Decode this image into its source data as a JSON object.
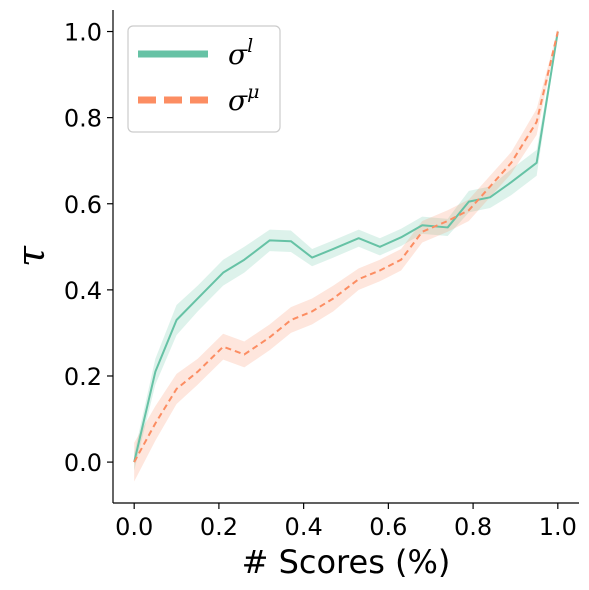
{
  "chart_data": {
    "type": "line",
    "xlabel": "# Scores (%)",
    "ylabel": "τ",
    "xlim": [
      -0.05,
      1.05
    ],
    "ylim": [
      -0.095,
      1.05
    ],
    "x_ticks": [
      0.0,
      0.2,
      0.4,
      0.6,
      0.8,
      1.0
    ],
    "x_tick_labels": [
      "0.0",
      "0.2",
      "0.4",
      "0.6",
      "0.8",
      "1.0"
    ],
    "y_ticks": [
      0.0,
      0.2,
      0.4,
      0.6,
      0.8,
      1.0
    ],
    "y_tick_labels": [
      "0.0",
      "0.2",
      "0.4",
      "0.6",
      "0.8",
      "1.0"
    ],
    "grid": false,
    "legend_position": "top-left",
    "x": [
      0.0,
      0.05,
      0.1,
      0.15,
      0.21,
      0.26,
      0.32,
      0.37,
      0.42,
      0.47,
      0.53,
      0.58,
      0.63,
      0.68,
      0.74,
      0.79,
      0.84,
      0.89,
      0.95,
      1.0
    ],
    "series": [
      {
        "name": "σˡ",
        "legend_base": "σ",
        "legend_sup": "l",
        "color": "#66c2a5",
        "style": "solid",
        "values": [
          0.0,
          0.21,
          0.33,
          0.38,
          0.44,
          0.47,
          0.515,
          0.513,
          0.475,
          0.495,
          0.52,
          0.5,
          0.522,
          0.55,
          0.545,
          0.605,
          0.615,
          0.65,
          0.695,
          1.0
        ],
        "band": [
          0.02,
          0.03,
          0.035,
          0.03,
          0.03,
          0.03,
          0.025,
          0.025,
          0.02,
          0.02,
          0.02,
          0.02,
          0.02,
          0.02,
          0.02,
          0.025,
          0.025,
          0.03,
          0.03,
          0.005
        ]
      },
      {
        "name": "σᵘ",
        "legend_base": "σ",
        "legend_sup": "μ",
        "color": "#fc8d62",
        "style": "dashed",
        "values": [
          0.0,
          0.09,
          0.17,
          0.21,
          0.268,
          0.25,
          0.29,
          0.33,
          0.35,
          0.38,
          0.425,
          0.445,
          0.47,
          0.535,
          0.56,
          0.585,
          0.64,
          0.695,
          0.79,
          1.0
        ],
        "band": [
          0.045,
          0.04,
          0.035,
          0.03,
          0.03,
          0.03,
          0.03,
          0.03,
          0.03,
          0.03,
          0.025,
          0.025,
          0.025,
          0.025,
          0.025,
          0.025,
          0.025,
          0.025,
          0.03,
          0.005
        ]
      }
    ]
  }
}
